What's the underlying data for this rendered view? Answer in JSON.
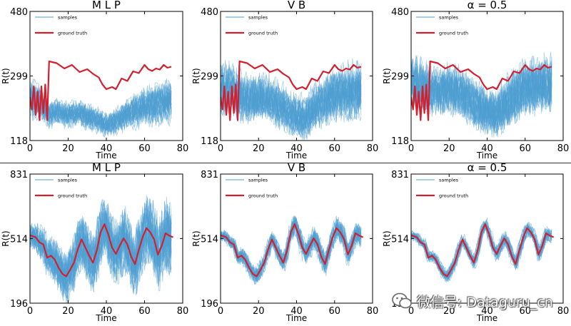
{
  "chart_data": [
    {
      "type": "line",
      "title": "M L P",
      "xlabel": "Time",
      "ylabel": "R(t)",
      "xlim": [
        0,
        80
      ],
      "ylim": [
        118,
        480
      ],
      "xticks": [
        "0",
        "20",
        "40",
        "60",
        "80"
      ],
      "yticks": [
        "118",
        "299",
        "480"
      ],
      "legend": [
        "samples",
        "ground truth"
      ],
      "legend_position": "top-left",
      "colors": {
        "samples": "#4f9ed2",
        "ground_truth": "#d3202e"
      },
      "ground_truth": [
        [
          0,
          240
        ],
        [
          1,
          205
        ],
        [
          2,
          270
        ],
        [
          3,
          190
        ],
        [
          4,
          255
        ],
        [
          5,
          175
        ],
        [
          6,
          270
        ],
        [
          7,
          195
        ],
        [
          8,
          275
        ],
        [
          9,
          175
        ],
        [
          10,
          340
        ],
        [
          14,
          335
        ],
        [
          18,
          320
        ],
        [
          22,
          330
        ],
        [
          26,
          310
        ],
        [
          30,
          318
        ],
        [
          33,
          305
        ],
        [
          36,
          295
        ],
        [
          38,
          275
        ],
        [
          40,
          262
        ],
        [
          43,
          268
        ],
        [
          45,
          262
        ],
        [
          48,
          292
        ],
        [
          51,
          285
        ],
        [
          54,
          312
        ],
        [
          57,
          307
        ],
        [
          60,
          330
        ],
        [
          62,
          318
        ],
        [
          64,
          313
        ],
        [
          66,
          320
        ],
        [
          68,
          317
        ],
        [
          70,
          330
        ],
        [
          72,
          322
        ],
        [
          74,
          325
        ]
      ],
      "samples_mean": [
        [
          0,
          235
        ],
        [
          5,
          225
        ],
        [
          10,
          190
        ],
        [
          15,
          198
        ],
        [
          20,
          188
        ],
        [
          25,
          196
        ],
        [
          30,
          185
        ],
        [
          35,
          176
        ],
        [
          40,
          162
        ],
        [
          45,
          170
        ],
        [
          50,
          190
        ],
        [
          55,
          200
        ],
        [
          60,
          212
        ],
        [
          65,
          218
        ],
        [
          70,
          225
        ],
        [
          74,
          228
        ]
      ],
      "samples_spread": [
        [
          0,
          55
        ],
        [
          10,
          35
        ],
        [
          20,
          35
        ],
        [
          30,
          35
        ],
        [
          40,
          32
        ],
        [
          50,
          40
        ],
        [
          60,
          50
        ],
        [
          74,
          60
        ]
      ]
    },
    {
      "type": "line",
      "title": "V B",
      "xlabel": "Time",
      "ylabel": "R(t)",
      "xlim": [
        0,
        80
      ],
      "ylim": [
        118,
        480
      ],
      "xticks": [
        "0",
        "20",
        "40",
        "60",
        "80"
      ],
      "yticks": [
        "118",
        "299",
        "480"
      ],
      "legend": [
        "samples",
        "ground truth"
      ],
      "legend_position": "top-left",
      "colors": {
        "samples": "#4f9ed2",
        "ground_truth": "#d3202e"
      },
      "ground_truth": [
        [
          0,
          240
        ],
        [
          1,
          205
        ],
        [
          2,
          270
        ],
        [
          3,
          190
        ],
        [
          4,
          255
        ],
        [
          5,
          175
        ],
        [
          6,
          270
        ],
        [
          7,
          195
        ],
        [
          8,
          275
        ],
        [
          9,
          175
        ],
        [
          10,
          340
        ],
        [
          14,
          335
        ],
        [
          18,
          320
        ],
        [
          22,
          330
        ],
        [
          26,
          310
        ],
        [
          30,
          318
        ],
        [
          33,
          305
        ],
        [
          36,
          295
        ],
        [
          38,
          275
        ],
        [
          40,
          262
        ],
        [
          43,
          268
        ],
        [
          45,
          262
        ],
        [
          48,
          292
        ],
        [
          51,
          285
        ],
        [
          54,
          312
        ],
        [
          57,
          307
        ],
        [
          60,
          330
        ],
        [
          62,
          318
        ],
        [
          64,
          313
        ],
        [
          66,
          320
        ],
        [
          68,
          317
        ],
        [
          70,
          330
        ],
        [
          72,
          322
        ],
        [
          74,
          325
        ]
      ],
      "samples_mean": [
        [
          0,
          265
        ],
        [
          5,
          262
        ],
        [
          10,
          240
        ],
        [
          15,
          232
        ],
        [
          20,
          240
        ],
        [
          25,
          235
        ],
        [
          30,
          218
        ],
        [
          35,
          202
        ],
        [
          40,
          185
        ],
        [
          45,
          180
        ],
        [
          50,
          212
        ],
        [
          55,
          228
        ],
        [
          60,
          245
        ],
        [
          65,
          250
        ],
        [
          70,
          255
        ],
        [
          74,
          258
        ]
      ],
      "samples_spread": [
        [
          0,
          75
        ],
        [
          10,
          70
        ],
        [
          20,
          65
        ],
        [
          30,
          65
        ],
        [
          40,
          60
        ],
        [
          50,
          65
        ],
        [
          60,
          75
        ],
        [
          74,
          80
        ]
      ]
    },
    {
      "type": "line",
      "title": "α = 0.5",
      "xlabel": "Time",
      "ylabel": "R(t)",
      "xlim": [
        0,
        80
      ],
      "ylim": [
        118,
        480
      ],
      "xticks": [
        "0",
        "20",
        "40",
        "60",
        "80"
      ],
      "yticks": [
        "118",
        "299",
        "480"
      ],
      "legend": [
        "samples",
        "ground truth"
      ],
      "legend_position": "top-left",
      "colors": {
        "samples": "#4f9ed2",
        "ground_truth": "#d3202e"
      },
      "ground_truth": [
        [
          0,
          240
        ],
        [
          1,
          205
        ],
        [
          2,
          270
        ],
        [
          3,
          190
        ],
        [
          4,
          255
        ],
        [
          5,
          175
        ],
        [
          6,
          270
        ],
        [
          7,
          195
        ],
        [
          8,
          275
        ],
        [
          9,
          175
        ],
        [
          10,
          340
        ],
        [
          14,
          335
        ],
        [
          18,
          320
        ],
        [
          22,
          330
        ],
        [
          26,
          310
        ],
        [
          30,
          318
        ],
        [
          33,
          305
        ],
        [
          36,
          295
        ],
        [
          38,
          275
        ],
        [
          40,
          262
        ],
        [
          43,
          268
        ],
        [
          45,
          262
        ],
        [
          48,
          292
        ],
        [
          51,
          285
        ],
        [
          54,
          312
        ],
        [
          57,
          307
        ],
        [
          60,
          330
        ],
        [
          62,
          318
        ],
        [
          64,
          313
        ],
        [
          66,
          320
        ],
        [
          68,
          317
        ],
        [
          70,
          330
        ],
        [
          72,
          322
        ],
        [
          74,
          325
        ]
      ],
      "samples_mean": [
        [
          0,
          280
        ],
        [
          5,
          270
        ],
        [
          10,
          255
        ],
        [
          15,
          250
        ],
        [
          20,
          258
        ],
        [
          25,
          250
        ],
        [
          30,
          232
        ],
        [
          35,
          210
        ],
        [
          40,
          195
        ],
        [
          45,
          190
        ],
        [
          50,
          220
        ],
        [
          55,
          240
        ],
        [
          60,
          262
        ],
        [
          65,
          262
        ],
        [
          70,
          268
        ],
        [
          74,
          270
        ]
      ],
      "samples_spread": [
        [
          0,
          80
        ],
        [
          10,
          75
        ],
        [
          20,
          75
        ],
        [
          30,
          75
        ],
        [
          40,
          70
        ],
        [
          50,
          80
        ],
        [
          60,
          85
        ],
        [
          74,
          90
        ]
      ]
    },
    {
      "type": "line",
      "title": "M L P",
      "xlabel": "Time",
      "ylabel": "R(t)",
      "xlim": [
        0,
        80
      ],
      "ylim": [
        196,
        831
      ],
      "xticks": [
        "0",
        "20",
        "40",
        "60",
        "80"
      ],
      "yticks": [
        "196",
        "514",
        "831"
      ],
      "legend": [
        "samples",
        "ground truth"
      ],
      "legend_position": "top-left",
      "colors": {
        "samples": "#4f9ed2",
        "ground_truth": "#d3202e"
      },
      "ground_truth": [
        [
          0,
          530
        ],
        [
          3,
          520
        ],
        [
          5,
          495
        ],
        [
          7,
          485
        ],
        [
          9,
          420
        ],
        [
          11,
          430
        ],
        [
          13,
          410
        ],
        [
          15,
          370
        ],
        [
          17,
          340
        ],
        [
          19,
          328
        ],
        [
          21,
          360
        ],
        [
          23,
          395
        ],
        [
          25,
          460
        ],
        [
          27,
          510
        ],
        [
          29,
          470
        ],
        [
          31,
          430
        ],
        [
          33,
          395
        ],
        [
          35,
          455
        ],
        [
          37,
          545
        ],
        [
          39,
          585
        ],
        [
          41,
          535
        ],
        [
          43,
          470
        ],
        [
          45,
          438
        ],
        [
          47,
          478
        ],
        [
          49,
          515
        ],
        [
          51,
          485
        ],
        [
          53,
          425
        ],
        [
          55,
          388
        ],
        [
          57,
          458
        ],
        [
          59,
          520
        ],
        [
          61,
          565
        ],
        [
          63,
          545
        ],
        [
          65,
          510
        ],
        [
          67,
          435
        ],
        [
          69,
          478
        ],
        [
          71,
          540
        ],
        [
          73,
          528
        ],
        [
          75,
          520
        ]
      ],
      "samples_spread": [
        [
          0,
          60
        ],
        [
          10,
          110
        ],
        [
          20,
          140
        ],
        [
          30,
          150
        ],
        [
          40,
          160
        ],
        [
          50,
          170
        ],
        [
          60,
          180
        ],
        [
          75,
          190
        ]
      ]
    },
    {
      "type": "line",
      "title": "V B",
      "xlabel": "Time",
      "ylabel": "R(t)",
      "xlim": [
        0,
        80
      ],
      "ylim": [
        196,
        831
      ],
      "xticks": [
        "0",
        "20",
        "40",
        "60",
        "80"
      ],
      "yticks": [
        "196",
        "514",
        "831"
      ],
      "legend": [
        "samples",
        "ground truth"
      ],
      "legend_position": "top-left",
      "colors": {
        "samples": "#4f9ed2",
        "ground_truth": "#d3202e"
      },
      "ground_truth": [
        [
          0,
          530
        ],
        [
          3,
          520
        ],
        [
          5,
          495
        ],
        [
          7,
          485
        ],
        [
          9,
          420
        ],
        [
          11,
          430
        ],
        [
          13,
          410
        ],
        [
          15,
          370
        ],
        [
          17,
          340
        ],
        [
          19,
          328
        ],
        [
          21,
          360
        ],
        [
          23,
          395
        ],
        [
          25,
          460
        ],
        [
          27,
          510
        ],
        [
          29,
          470
        ],
        [
          31,
          430
        ],
        [
          33,
          395
        ],
        [
          35,
          455
        ],
        [
          37,
          545
        ],
        [
          39,
          585
        ],
        [
          41,
          535
        ],
        [
          43,
          470
        ],
        [
          45,
          438
        ],
        [
          47,
          478
        ],
        [
          49,
          515
        ],
        [
          51,
          485
        ],
        [
          53,
          425
        ],
        [
          55,
          388
        ],
        [
          57,
          458
        ],
        [
          59,
          520
        ],
        [
          61,
          565
        ],
        [
          63,
          545
        ],
        [
          65,
          510
        ],
        [
          67,
          435
        ],
        [
          69,
          478
        ],
        [
          71,
          540
        ],
        [
          73,
          528
        ],
        [
          75,
          520
        ]
      ],
      "samples_spread": [
        [
          0,
          25
        ],
        [
          10,
          40
        ],
        [
          20,
          45
        ],
        [
          30,
          50
        ],
        [
          40,
          55
        ],
        [
          50,
          60
        ],
        [
          60,
          60
        ],
        [
          75,
          55
        ]
      ]
    },
    {
      "type": "line",
      "title": "α = 0.5",
      "xlabel": "Time",
      "ylabel": "R(t)",
      "xlim": [
        0,
        80
      ],
      "ylim": [
        196,
        831
      ],
      "xticks": [
        "0",
        "20",
        "40",
        "60",
        "80"
      ],
      "yticks": [
        "196",
        "514",
        "831"
      ],
      "legend": [
        "samples",
        "ground truth"
      ],
      "legend_position": "top-left",
      "colors": {
        "samples": "#4f9ed2",
        "ground_truth": "#d3202e"
      },
      "ground_truth": [
        [
          0,
          530
        ],
        [
          3,
          520
        ],
        [
          5,
          495
        ],
        [
          7,
          485
        ],
        [
          9,
          420
        ],
        [
          11,
          430
        ],
        [
          13,
          410
        ],
        [
          15,
          370
        ],
        [
          17,
          340
        ],
        [
          19,
          328
        ],
        [
          21,
          360
        ],
        [
          23,
          395
        ],
        [
          25,
          460
        ],
        [
          27,
          510
        ],
        [
          29,
          470
        ],
        [
          31,
          430
        ],
        [
          33,
          395
        ],
        [
          35,
          455
        ],
        [
          37,
          545
        ],
        [
          39,
          585
        ],
        [
          41,
          535
        ],
        [
          43,
          470
        ],
        [
          45,
          438
        ],
        [
          47,
          478
        ],
        [
          49,
          515
        ],
        [
          51,
          485
        ],
        [
          53,
          425
        ],
        [
          55,
          388
        ],
        [
          57,
          458
        ],
        [
          59,
          520
        ],
        [
          61,
          565
        ],
        [
          63,
          545
        ],
        [
          65,
          510
        ],
        [
          67,
          435
        ],
        [
          69,
          478
        ],
        [
          71,
          540
        ],
        [
          73,
          528
        ],
        [
          75,
          520
        ]
      ],
      "samples_spread": [
        [
          0,
          20
        ],
        [
          10,
          25
        ],
        [
          20,
          30
        ],
        [
          30,
          30
        ],
        [
          40,
          32
        ],
        [
          50,
          35
        ],
        [
          60,
          35
        ],
        [
          75,
          35
        ]
      ]
    }
  ],
  "watermark": {
    "text": "微信号: Dataguru_cn",
    "icon": "wechat-icon"
  }
}
